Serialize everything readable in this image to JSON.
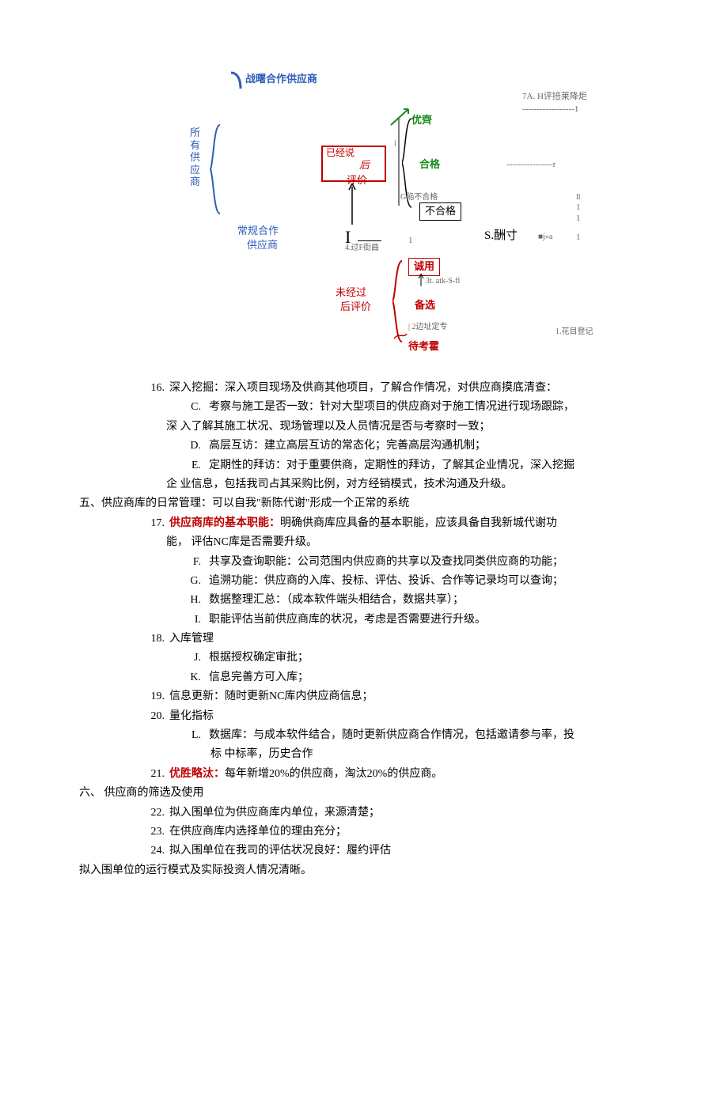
{
  "diagram": {
    "strategic_supplier": "战曙合作供应商",
    "all_suppliers": "所\n有\n供\n应\n商",
    "evaluated_label_a": "已经说",
    "evaluated_label_b": "后",
    "evaluated_label_c": "评价",
    "excellent": "优齊",
    "qualified": "合格",
    "unqualified_note": "G陥不合格",
    "unqualified": "不合格",
    "regular_supplier_a": "常规合作",
    "regular_supplier_b": "供应商",
    "big_I": "I",
    "note_4": "4.过F街曲",
    "one": "1",
    "s_ch": "S.酬寸",
    "jwa": "■j»a",
    "trial": "诚用",
    "not_evaluated_a": "未经过",
    "not_evaluated_b": "后评价",
    "note_3": "3t. atk-S-fl",
    "alternative": "备选",
    "note_2": "2边址定专",
    "pending": "待考霍",
    "note_1": "1.花目登记",
    "top_right_note": "7A. H评掊莱降炬",
    "dash1": "------------------1",
    "dash_r": "----------------r",
    "two_small_1a": "ll",
    "two_small_1b": "1",
    "two_small_1c": "1",
    "two_small_1d": "1",
    "two_small_1e": "1"
  },
  "body": {
    "n16": "深入挖掘：深入项目现场及供商其他项目，了解合作情况，对供应商摸底清查：",
    "C": "考察与施工是否一致：针对大型项目的供应商对于施工情况进行现场跟踪，",
    "C2": "深 入了解其施工状况、现场管理以及人员情况是否与考察时一致；",
    "D": "高层互访：建立高层互访的常态化；完善高层沟通机制；",
    "E": "定期性的拜访：对于重要供商，定期性的拜访，了解其企业情况，深入挖掘",
    "E2": "企 业信息，包括我司占其采购比例，对方经销模式，技术沟通及升级。",
    "sec5": "五、",
    "sec5_text": "供应商库的日常管理：可以自我\"新陈代谢\"形成一个正常的系统",
    "n17_red": "供应商库的基本职能：",
    "n17_rest": "明确供商库应具备的基本职能，应该具备自我新城代谢功",
    "n17_2": "能， 评估NC库是否需要升级。",
    "F": "共享及查询职能：公司范围内供应商的共享以及查找同类供应商的功能；",
    "G": "追溯功能：供应商的入库、投标、评估、投诉、合作等记录均可以查询；",
    "H": "数据整理汇总：（成本软件端头相结合，数据共享）；",
    "I": "职能评估当前供应商库的状况，考虑是否需要进行升级。",
    "n18": "入库管理",
    "J": "根据授权确定审批；",
    "K": "信息完善方可入库；",
    "n19": "信息更新：随时更新NC库内供应商信息；",
    "n20": "量化指标",
    "L": "数据库：与成本软件结合，随时更新供应商合作情况，包括邀请参与率，投",
    "L2": "标 中标率，历史合作",
    "n21_red": "优胜略汰：",
    "n21_rest": "每年新增20%的供应商，淘汰20%的供应商。",
    "sec6": "六、",
    "sec6_text": "供应商的筛选及使用",
    "n22": "拟入围单位为供应商库内单位，来源清楚；",
    "n23": "在供应商库内选择单位的理由充分；",
    "n24": "拟入围单位在我司的评估状况良好：履约评估",
    "last": "拟入围单位的运行模式及实际投资人情况清晰。"
  },
  "nums": {
    "n16": "16.",
    "n17": "17.",
    "n18": "18.",
    "n19": "19.",
    "n20": "20.",
    "n21": "21.",
    "n22": "22.",
    "n23": "23.",
    "n24": "24.",
    "C": "C.",
    "D": "D.",
    "E": "E.",
    "F": "F.",
    "G": "G.",
    "H": "H.",
    "I": "I.",
    "J": "J.",
    "K": "K.",
    "L": "L."
  },
  "colors": {
    "blue": "#2e5cb8",
    "red": "#c00000",
    "green": "#1a8a1a",
    "gray": "#666666"
  }
}
